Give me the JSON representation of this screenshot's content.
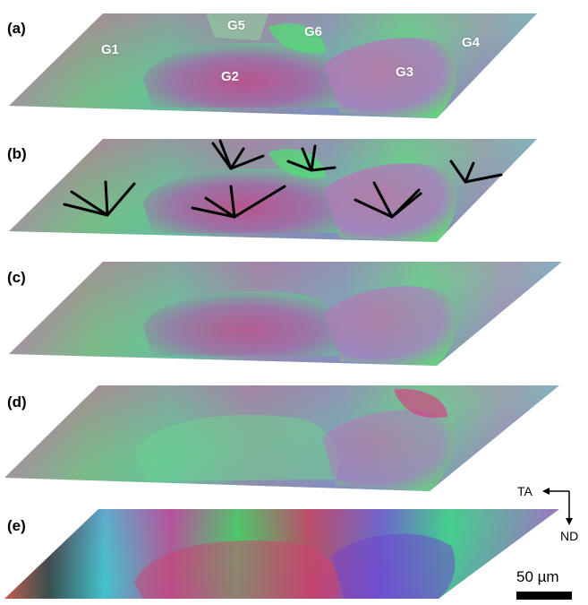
{
  "panels": [
    {
      "label": "(a)",
      "grain_labels": [
        "G1",
        "G2",
        "G3",
        "G4",
        "G5",
        "G6"
      ]
    },
    {
      "label": "(b)"
    },
    {
      "label": "(c)"
    },
    {
      "label": "(d)"
    },
    {
      "label": "(e)"
    }
  ],
  "axes": {
    "horizontal": "TA",
    "vertical": "ND"
  },
  "scale_bar": {
    "label": "50 µm"
  }
}
